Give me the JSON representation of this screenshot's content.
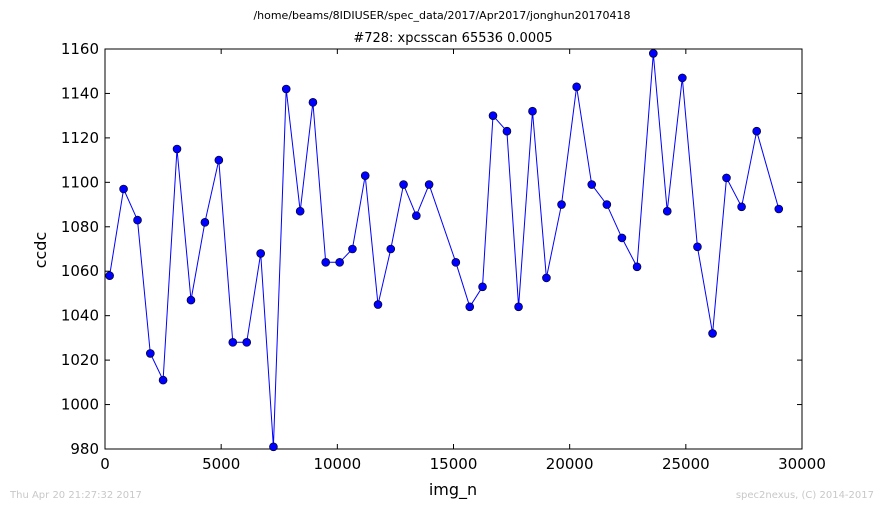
{
  "header": {
    "path": "/home/beams/8IDIUSER/spec_data/2017/Apr2017/jonghun20170418",
    "scan_title": "#728: xpcsscan 65536 0.0005"
  },
  "footer": {
    "timestamp": "Thu Apr 20 21:27:32 2017",
    "credit": "spec2nexus, (C) 2014-2017"
  },
  "chart_data": {
    "type": "line",
    "title": "#728: xpcsscan 65536 0.0005",
    "xlabel": "img_n",
    "ylabel": "ccdc",
    "xlim": [
      0,
      30000
    ],
    "ylim": [
      980,
      1160
    ],
    "xticks": [
      "0",
      "5000",
      "10000",
      "15000",
      "20000",
      "25000",
      "30000"
    ],
    "yticks": [
      "980",
      "1000",
      "1020",
      "1040",
      "1060",
      "1080",
      "1100",
      "1120",
      "1140",
      "1160"
    ],
    "grid": false,
    "line_color": "#0000ff",
    "marker_color": "#0000ff",
    "series": [
      {
        "x": [
          200,
          800,
          1400,
          1950,
          2500,
          3100,
          3700,
          4300,
          4900,
          5500,
          6100,
          6700,
          7250,
          7800,
          8400,
          8950,
          9500,
          10100,
          10650,
          11200,
          11750,
          12300,
          12850,
          13400,
          13950,
          15100,
          15700,
          16250,
          16700,
          17300,
          17800,
          18400,
          19000,
          19650,
          20300,
          20950,
          21600,
          22250,
          22900,
          23600,
          24200,
          24850,
          25500,
          26150,
          26750,
          27400,
          28050,
          29000
        ],
        "y": [
          1058,
          1097,
          1083,
          1023,
          1011,
          1115,
          1047,
          1082,
          1110,
          1028,
          1028,
          1068,
          981,
          1142,
          1087,
          1136,
          1064,
          1064,
          1070,
          1103,
          1045,
          1070,
          1099,
          1085,
          1099,
          1064,
          1044,
          1053,
          1130,
          1123,
          1044,
          1132,
          1057,
          1090,
          1143,
          1099,
          1090,
          1075,
          1062,
          1158,
          1087,
          1147,
          1071,
          1032,
          1102,
          1089,
          1123,
          1088
        ]
      }
    ]
  }
}
